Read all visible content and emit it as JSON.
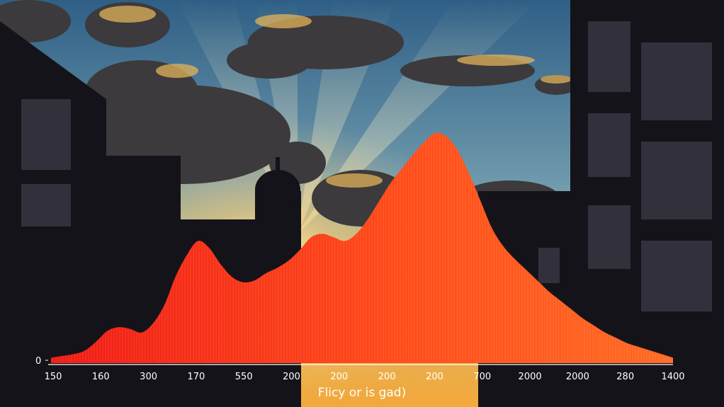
{
  "chart_data": {
    "type": "area",
    "title": "",
    "xlabel": "Flicy or is gad)",
    "ylabel": "",
    "y_tick_label": "0",
    "ylim": [
      0,
      100
    ],
    "x_tick_labels": [
      "150",
      "160",
      "300",
      "170",
      "550",
      "200",
      "200",
      "200",
      "200",
      "700",
      "2000",
      "2000",
      "280",
      "1400"
    ],
    "profile": [
      3,
      4,
      5,
      7,
      12,
      18,
      20,
      19,
      17,
      22,
      32,
      48,
      60,
      68,
      64,
      55,
      48,
      45,
      46,
      50,
      53,
      57,
      63,
      70,
      72,
      70,
      68,
      72,
      80,
      90,
      100,
      108,
      116,
      123,
      128,
      126,
      118,
      105,
      90,
      75,
      65,
      58,
      52,
      46,
      40,
      35,
      30,
      25,
      21,
      17,
      14,
      11,
      9,
      7,
      5,
      3
    ],
    "fill_colors": [
      "#f01a14",
      "#ff4a18",
      "#ff6a22"
    ],
    "background": "sunset-city-skyline-photo"
  }
}
